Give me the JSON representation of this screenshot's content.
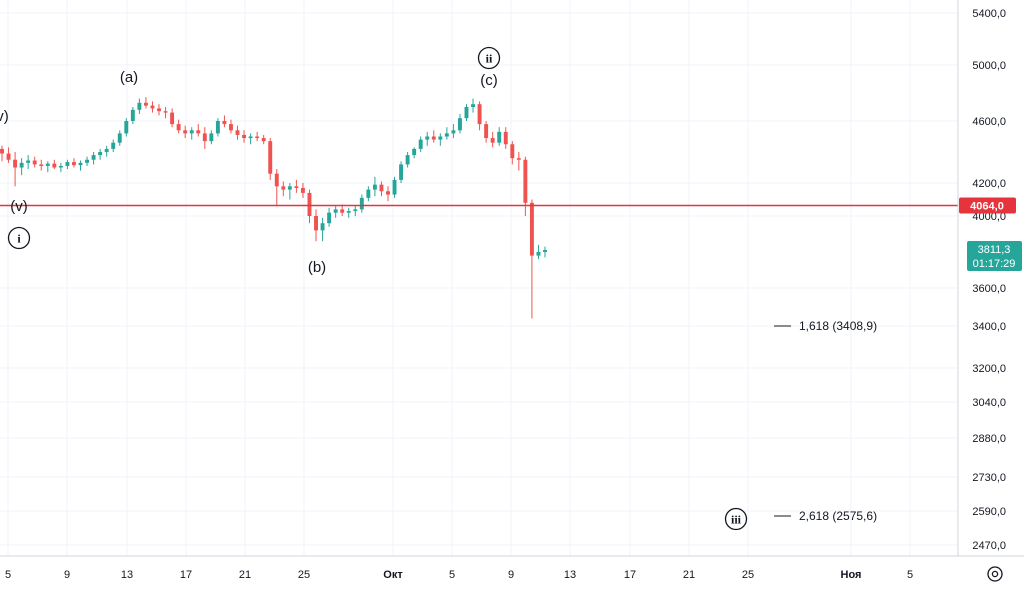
{
  "chart_data": {
    "type": "candlestick",
    "y_ticks": [
      "5400,0",
      "5000,0",
      "4600,0",
      "4200,0",
      "4000,0",
      "3600,0",
      "3400,0",
      "3200,0",
      "3040,0",
      "2880,0",
      "2730,0",
      "2590,0",
      "2470,0"
    ],
    "x_ticks": [
      "5",
      "9",
      "13",
      "17",
      "21",
      "25",
      "Окт",
      "5",
      "9",
      "13",
      "17",
      "21",
      "25",
      "Ноя",
      "5"
    ],
    "price_line": {
      "value": 4064.0,
      "label": "4064,0",
      "color": "#e5343b"
    },
    "current_price": {
      "label": "3811,3",
      "countdown": "01:17:29",
      "color": "#26a69a"
    },
    "wave_labels": [
      "(v)",
      "(a)",
      "(b)",
      "(c)",
      "(v)",
      "i",
      "ii",
      "iii"
    ],
    "fib_levels": [
      {
        "ratio": "1,618",
        "price": "3408,9",
        "text": "1,618 (3408,9)"
      },
      {
        "ratio": "2,618",
        "price": "2575,6",
        "text": "2,618 (2575,6)"
      }
    ],
    "up_color": "#26a69a",
    "down_color": "#ef5350",
    "ohlc": [
      [
        4420,
        4440,
        4340,
        4390
      ],
      [
        4390,
        4430,
        4330,
        4350
      ],
      [
        4350,
        4400,
        4180,
        4300
      ],
      [
        4300,
        4360,
        4250,
        4330
      ],
      [
        4330,
        4380,
        4290,
        4345
      ],
      [
        4345,
        4370,
        4300,
        4320
      ],
      [
        4320,
        4350,
        4280,
        4310
      ],
      [
        4310,
        4340,
        4270,
        4325
      ],
      [
        4325,
        4350,
        4290,
        4300
      ],
      [
        4300,
        4330,
        4270,
        4310
      ],
      [
        4310,
        4350,
        4290,
        4335
      ],
      [
        4335,
        4360,
        4300,
        4315
      ],
      [
        4315,
        4345,
        4280,
        4330
      ],
      [
        4330,
        4370,
        4310,
        4350
      ],
      [
        4350,
        4400,
        4320,
        4380
      ],
      [
        4380,
        4420,
        4350,
        4400
      ],
      [
        4400,
        4440,
        4370,
        4420
      ],
      [
        4420,
        4480,
        4400,
        4460
      ],
      [
        4460,
        4540,
        4440,
        4520
      ],
      [
        4520,
        4620,
        4500,
        4600
      ],
      [
        4600,
        4700,
        4580,
        4680
      ],
      [
        4680,
        4760,
        4650,
        4730
      ],
      [
        4730,
        4770,
        4690,
        4710
      ],
      [
        4710,
        4740,
        4660,
        4690
      ],
      [
        4690,
        4720,
        4640,
        4670
      ],
      [
        4670,
        4700,
        4620,
        4660
      ],
      [
        4660,
        4690,
        4560,
        4580
      ],
      [
        4580,
        4610,
        4520,
        4540
      ],
      [
        4540,
        4570,
        4490,
        4520
      ],
      [
        4520,
        4560,
        4480,
        4540
      ],
      [
        4540,
        4580,
        4500,
        4520
      ],
      [
        4520,
        4560,
        4420,
        4470
      ],
      [
        4470,
        4540,
        4450,
        4520
      ],
      [
        4520,
        4620,
        4500,
        4600
      ],
      [
        4600,
        4640,
        4560,
        4580
      ],
      [
        4580,
        4610,
        4520,
        4540
      ],
      [
        4540,
        4570,
        4480,
        4510
      ],
      [
        4510,
        4540,
        4460,
        4490
      ],
      [
        4490,
        4520,
        4450,
        4500
      ],
      [
        4500,
        4530,
        4470,
        4490
      ],
      [
        4490,
        4510,
        4450,
        4470
      ],
      [
        4470,
        4490,
        4220,
        4260
      ],
      [
        4260,
        4290,
        4060,
        4180
      ],
      [
        4180,
        4210,
        4120,
        4160
      ],
      [
        4160,
        4200,
        4100,
        4180
      ],
      [
        4180,
        4220,
        4140,
        4170
      ],
      [
        4170,
        4200,
        4110,
        4140
      ],
      [
        4140,
        4160,
        3960,
        4000
      ],
      [
        4000,
        4040,
        3860,
        3920
      ],
      [
        3920,
        3990,
        3860,
        3960
      ],
      [
        3960,
        4050,
        3940,
        4020
      ],
      [
        4020,
        4060,
        3990,
        4040
      ],
      [
        4040,
        4070,
        4000,
        4020
      ],
      [
        4020,
        4050,
        3990,
        4030
      ],
      [
        4030,
        4060,
        4000,
        4040
      ],
      [
        4040,
        4130,
        4020,
        4110
      ],
      [
        4110,
        4180,
        4090,
        4160
      ],
      [
        4160,
        4240,
        4120,
        4190
      ],
      [
        4190,
        4210,
        4120,
        4150
      ],
      [
        4150,
        4180,
        4090,
        4130
      ],
      [
        4130,
        4240,
        4110,
        4220
      ],
      [
        4220,
        4340,
        4200,
        4320
      ],
      [
        4320,
        4400,
        4300,
        4380
      ],
      [
        4380,
        4430,
        4360,
        4420
      ],
      [
        4420,
        4500,
        4400,
        4480
      ],
      [
        4480,
        4530,
        4440,
        4500
      ],
      [
        4500,
        4540,
        4460,
        4480
      ],
      [
        4480,
        4520,
        4440,
        4500
      ],
      [
        4500,
        4560,
        4480,
        4520
      ],
      [
        4520,
        4580,
        4490,
        4540
      ],
      [
        4540,
        4650,
        4520,
        4620
      ],
      [
        4620,
        4720,
        4600,
        4700
      ],
      [
        4700,
        4760,
        4660,
        4720
      ],
      [
        4720,
        4740,
        4540,
        4580
      ],
      [
        4580,
        4600,
        4460,
        4490
      ],
      [
        4490,
        4530,
        4430,
        4460
      ],
      [
        4460,
        4560,
        4440,
        4530
      ],
      [
        4530,
        4560,
        4420,
        4450
      ],
      [
        4450,
        4470,
        4320,
        4360
      ],
      [
        4360,
        4400,
        4280,
        4350
      ],
      [
        4350,
        4370,
        4000,
        4080
      ],
      [
        4080,
        4100,
        3440,
        3780
      ],
      [
        3780,
        3840,
        3760,
        3800
      ],
      [
        3800,
        3830,
        3770,
        3811.3
      ]
    ]
  },
  "ui": {
    "settings_icon": "settings-gear-icon"
  }
}
